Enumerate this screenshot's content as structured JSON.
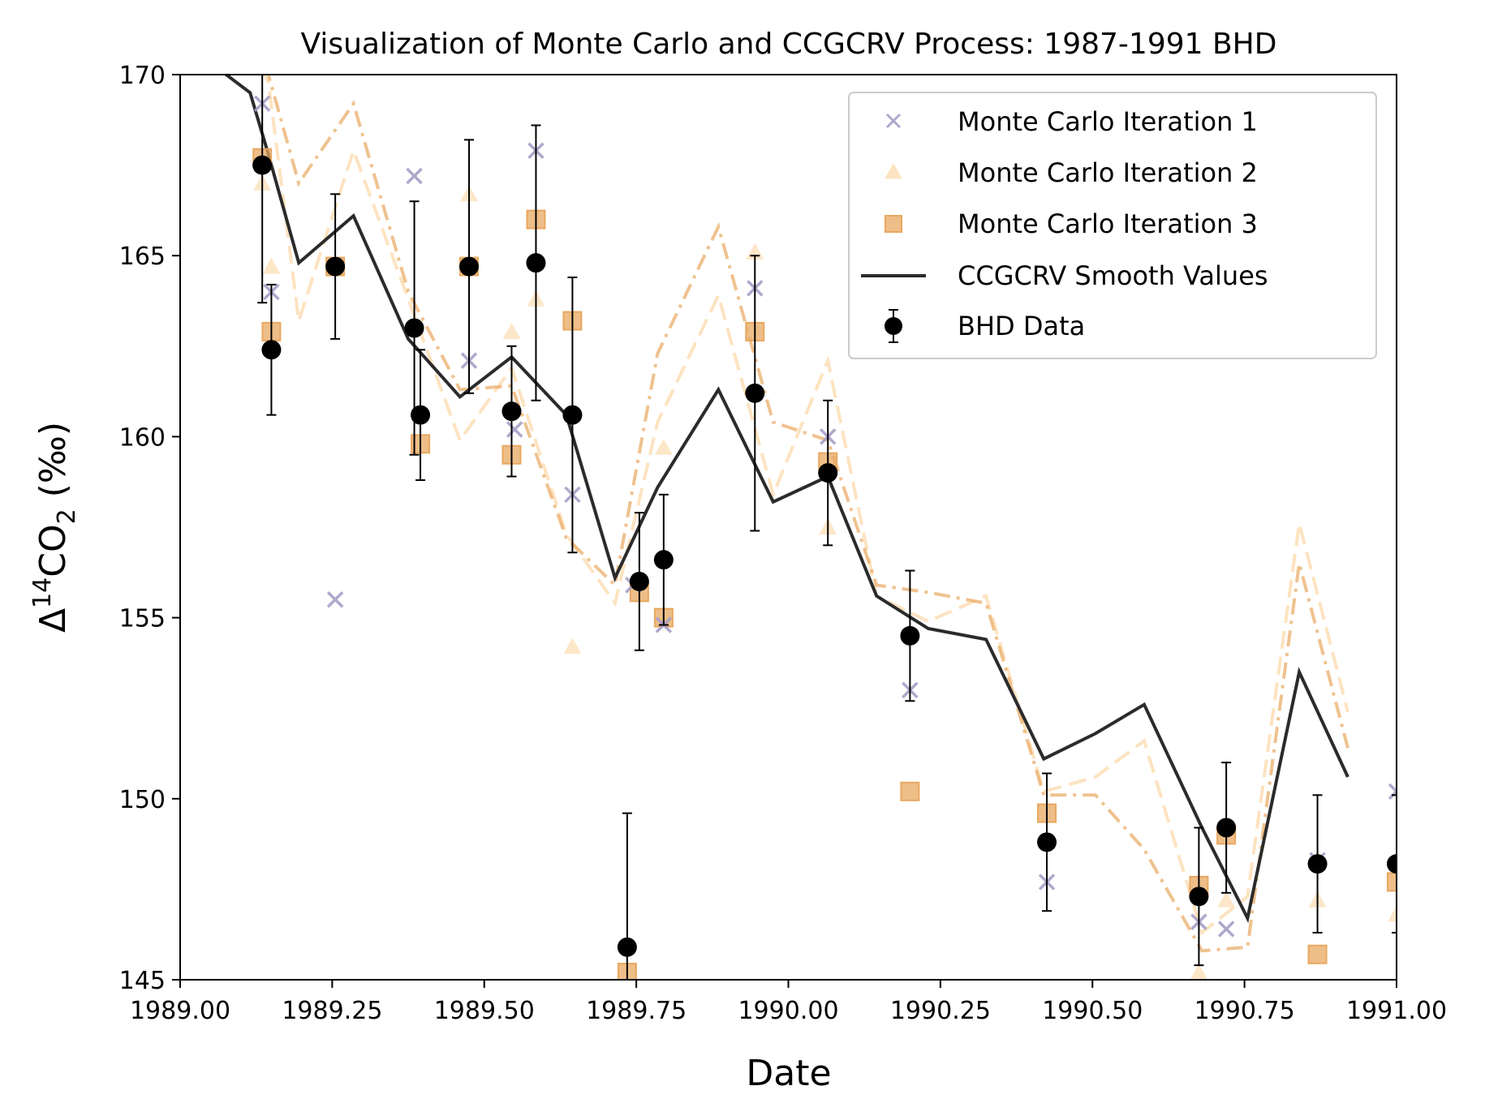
{
  "chart_data": {
    "type": "scatter",
    "title": "Visualization of Monte Carlo and CCGCRV Process: 1987-1991 BHD",
    "xlabel": "Date",
    "ylabel_main": "Δ",
    "ylabel_sup": "14",
    "ylabel_mid": "CO",
    "ylabel_sub": "2",
    "ylabel_tail": " (‰)",
    "xlim": [
      1989.0,
      1991.0
    ],
    "ylim": [
      145,
      170
    ],
    "xticks": [
      1989.0,
      1989.25,
      1989.5,
      1989.75,
      1990.0,
      1990.25,
      1990.5,
      1990.75,
      1991.0
    ],
    "xtick_labels": [
      "1989.00",
      "1989.25",
      "1989.50",
      "1989.75",
      "1990.00",
      "1990.25",
      "1990.50",
      "1990.75",
      "1991.00"
    ],
    "yticks": [
      145,
      150,
      155,
      160,
      165,
      170
    ],
    "ytick_labels": [
      "145",
      "150",
      "155",
      "160",
      "165",
      "170"
    ],
    "grid": false,
    "legend_position": "upper-right",
    "colors": {
      "mc1": "#a79fc7",
      "mc2": "#fde3c0",
      "mc3": "#e8a860",
      "ccgcrv": "#2b2b2b",
      "bhd": "#000000"
    },
    "series": [
      {
        "name": "Monte Carlo Iteration 1",
        "marker": "x",
        "x": [
          1989.135,
          1989.15,
          1989.255,
          1989.385,
          1989.475,
          1989.55,
          1989.585,
          1989.645,
          1989.745,
          1989.795,
          1989.945,
          1990.065,
          1990.2,
          1990.425,
          1990.675,
          1990.72,
          1990.87,
          1991.0
        ],
        "y": [
          169.2,
          164.0,
          155.5,
          167.2,
          162.1,
          160.2,
          167.9,
          158.4,
          155.9,
          154.8,
          164.1,
          160.0,
          153.0,
          147.7,
          146.6,
          146.4,
          148.3,
          150.2
        ]
      },
      {
        "name": "Monte Carlo Iteration 2",
        "marker": "triangle",
        "x": [
          1989.135,
          1989.15,
          1989.475,
          1989.545,
          1989.585,
          1989.645,
          1989.795,
          1989.945,
          1990.065,
          1990.675,
          1990.72,
          1990.87,
          1991.0
        ],
        "y": [
          167.0,
          164.7,
          166.7,
          162.9,
          163.8,
          154.2,
          159.7,
          165.1,
          157.5,
          145.2,
          147.2,
          147.2,
          146.8
        ]
      },
      {
        "name": "Monte Carlo Iteration 3",
        "marker": "square",
        "x": [
          1989.135,
          1989.15,
          1989.255,
          1989.395,
          1989.475,
          1989.545,
          1989.585,
          1989.645,
          1989.735,
          1989.755,
          1989.795,
          1989.945,
          1990.065,
          1990.2,
          1990.425,
          1990.675,
          1990.72,
          1990.87,
          1991.0
        ],
        "y": [
          167.7,
          162.9,
          164.7,
          159.8,
          164.7,
          159.5,
          166.0,
          163.2,
          145.2,
          155.7,
          155.0,
          162.9,
          159.3,
          150.2,
          149.6,
          147.6,
          149.0,
          145.7,
          147.7
        ]
      },
      {
        "name": "CCGCRV Smooth Values",
        "marker": "line",
        "x": [
          1989.06,
          1989.115,
          1989.145,
          1989.195,
          1989.285,
          1989.375,
          1989.46,
          1989.545,
          1989.635,
          1989.715,
          1989.785,
          1989.885,
          1989.975,
          1990.065,
          1990.145,
          1990.23,
          1990.325,
          1990.42,
          1990.505,
          1990.585,
          1990.68,
          1990.755,
          1990.84,
          1990.92
        ],
        "y": [
          170.2,
          169.5,
          167.8,
          164.8,
          166.1,
          162.7,
          161.1,
          162.2,
          160.6,
          156.1,
          158.6,
          161.3,
          158.2,
          158.9,
          155.6,
          154.7,
          154.4,
          151.1,
          151.8,
          152.6,
          149.2,
          146.7,
          153.5,
          150.6
        ]
      },
      {
        "name": "BHD Data",
        "marker": "errorbar",
        "x": [
          1989.135,
          1989.15,
          1989.255,
          1989.385,
          1989.395,
          1989.475,
          1989.545,
          1989.585,
          1989.645,
          1989.735,
          1989.755,
          1989.795,
          1989.945,
          1990.065,
          1990.2,
          1990.425,
          1990.675,
          1990.72,
          1990.87,
          1991.0
        ],
        "y": [
          167.5,
          162.4,
          164.7,
          163.0,
          160.6,
          164.7,
          160.7,
          164.8,
          160.6,
          145.9,
          156.0,
          156.6,
          161.2,
          159.0,
          154.5,
          148.8,
          147.3,
          149.2,
          148.2,
          148.2
        ],
        "err": [
          3.8,
          1.8,
          2.0,
          3.5,
          1.8,
          3.5,
          1.8,
          3.8,
          3.8,
          3.7,
          1.9,
          1.8,
          3.8,
          2.0,
          1.8,
          1.9,
          1.9,
          1.8,
          1.9,
          1.9
        ]
      }
    ],
    "mc_lines": [
      {
        "style": "mc2-dashed",
        "x": [
          1989.06,
          1989.115,
          1989.145,
          1989.195,
          1989.285,
          1989.375,
          1989.46,
          1989.545,
          1989.635,
          1989.715,
          1989.785,
          1989.885,
          1989.975,
          1990.065,
          1990.145,
          1990.23,
          1990.325,
          1990.42,
          1990.505,
          1990.585,
          1990.68,
          1990.755,
          1990.84,
          1990.92
        ],
        "y": [
          170.4,
          170.6,
          169.8,
          163.2,
          167.9,
          163.8,
          159.9,
          161.9,
          157.3,
          155.4,
          160.4,
          163.9,
          158.4,
          162.1,
          155.6,
          154.9,
          155.6,
          150.2,
          150.6,
          151.6,
          146.3,
          147.3,
          157.6,
          152.4
        ]
      },
      {
        "style": "mc3-dashdot",
        "x": [
          1989.06,
          1989.115,
          1989.145,
          1989.195,
          1989.285,
          1989.375,
          1989.46,
          1989.545,
          1989.635,
          1989.715,
          1989.785,
          1989.885,
          1989.975,
          1990.065,
          1990.145,
          1990.23,
          1990.325,
          1990.42,
          1990.505,
          1990.585,
          1990.68,
          1990.755,
          1990.84,
          1990.92
        ],
        "y": [
          170.8,
          171.0,
          170.0,
          167.0,
          169.2,
          164.0,
          161.3,
          161.4,
          157.2,
          155.9,
          162.3,
          165.8,
          160.4,
          159.9,
          155.9,
          155.7,
          155.4,
          150.1,
          150.1,
          148.6,
          145.8,
          145.9,
          156.5,
          151.4
        ]
      }
    ]
  }
}
